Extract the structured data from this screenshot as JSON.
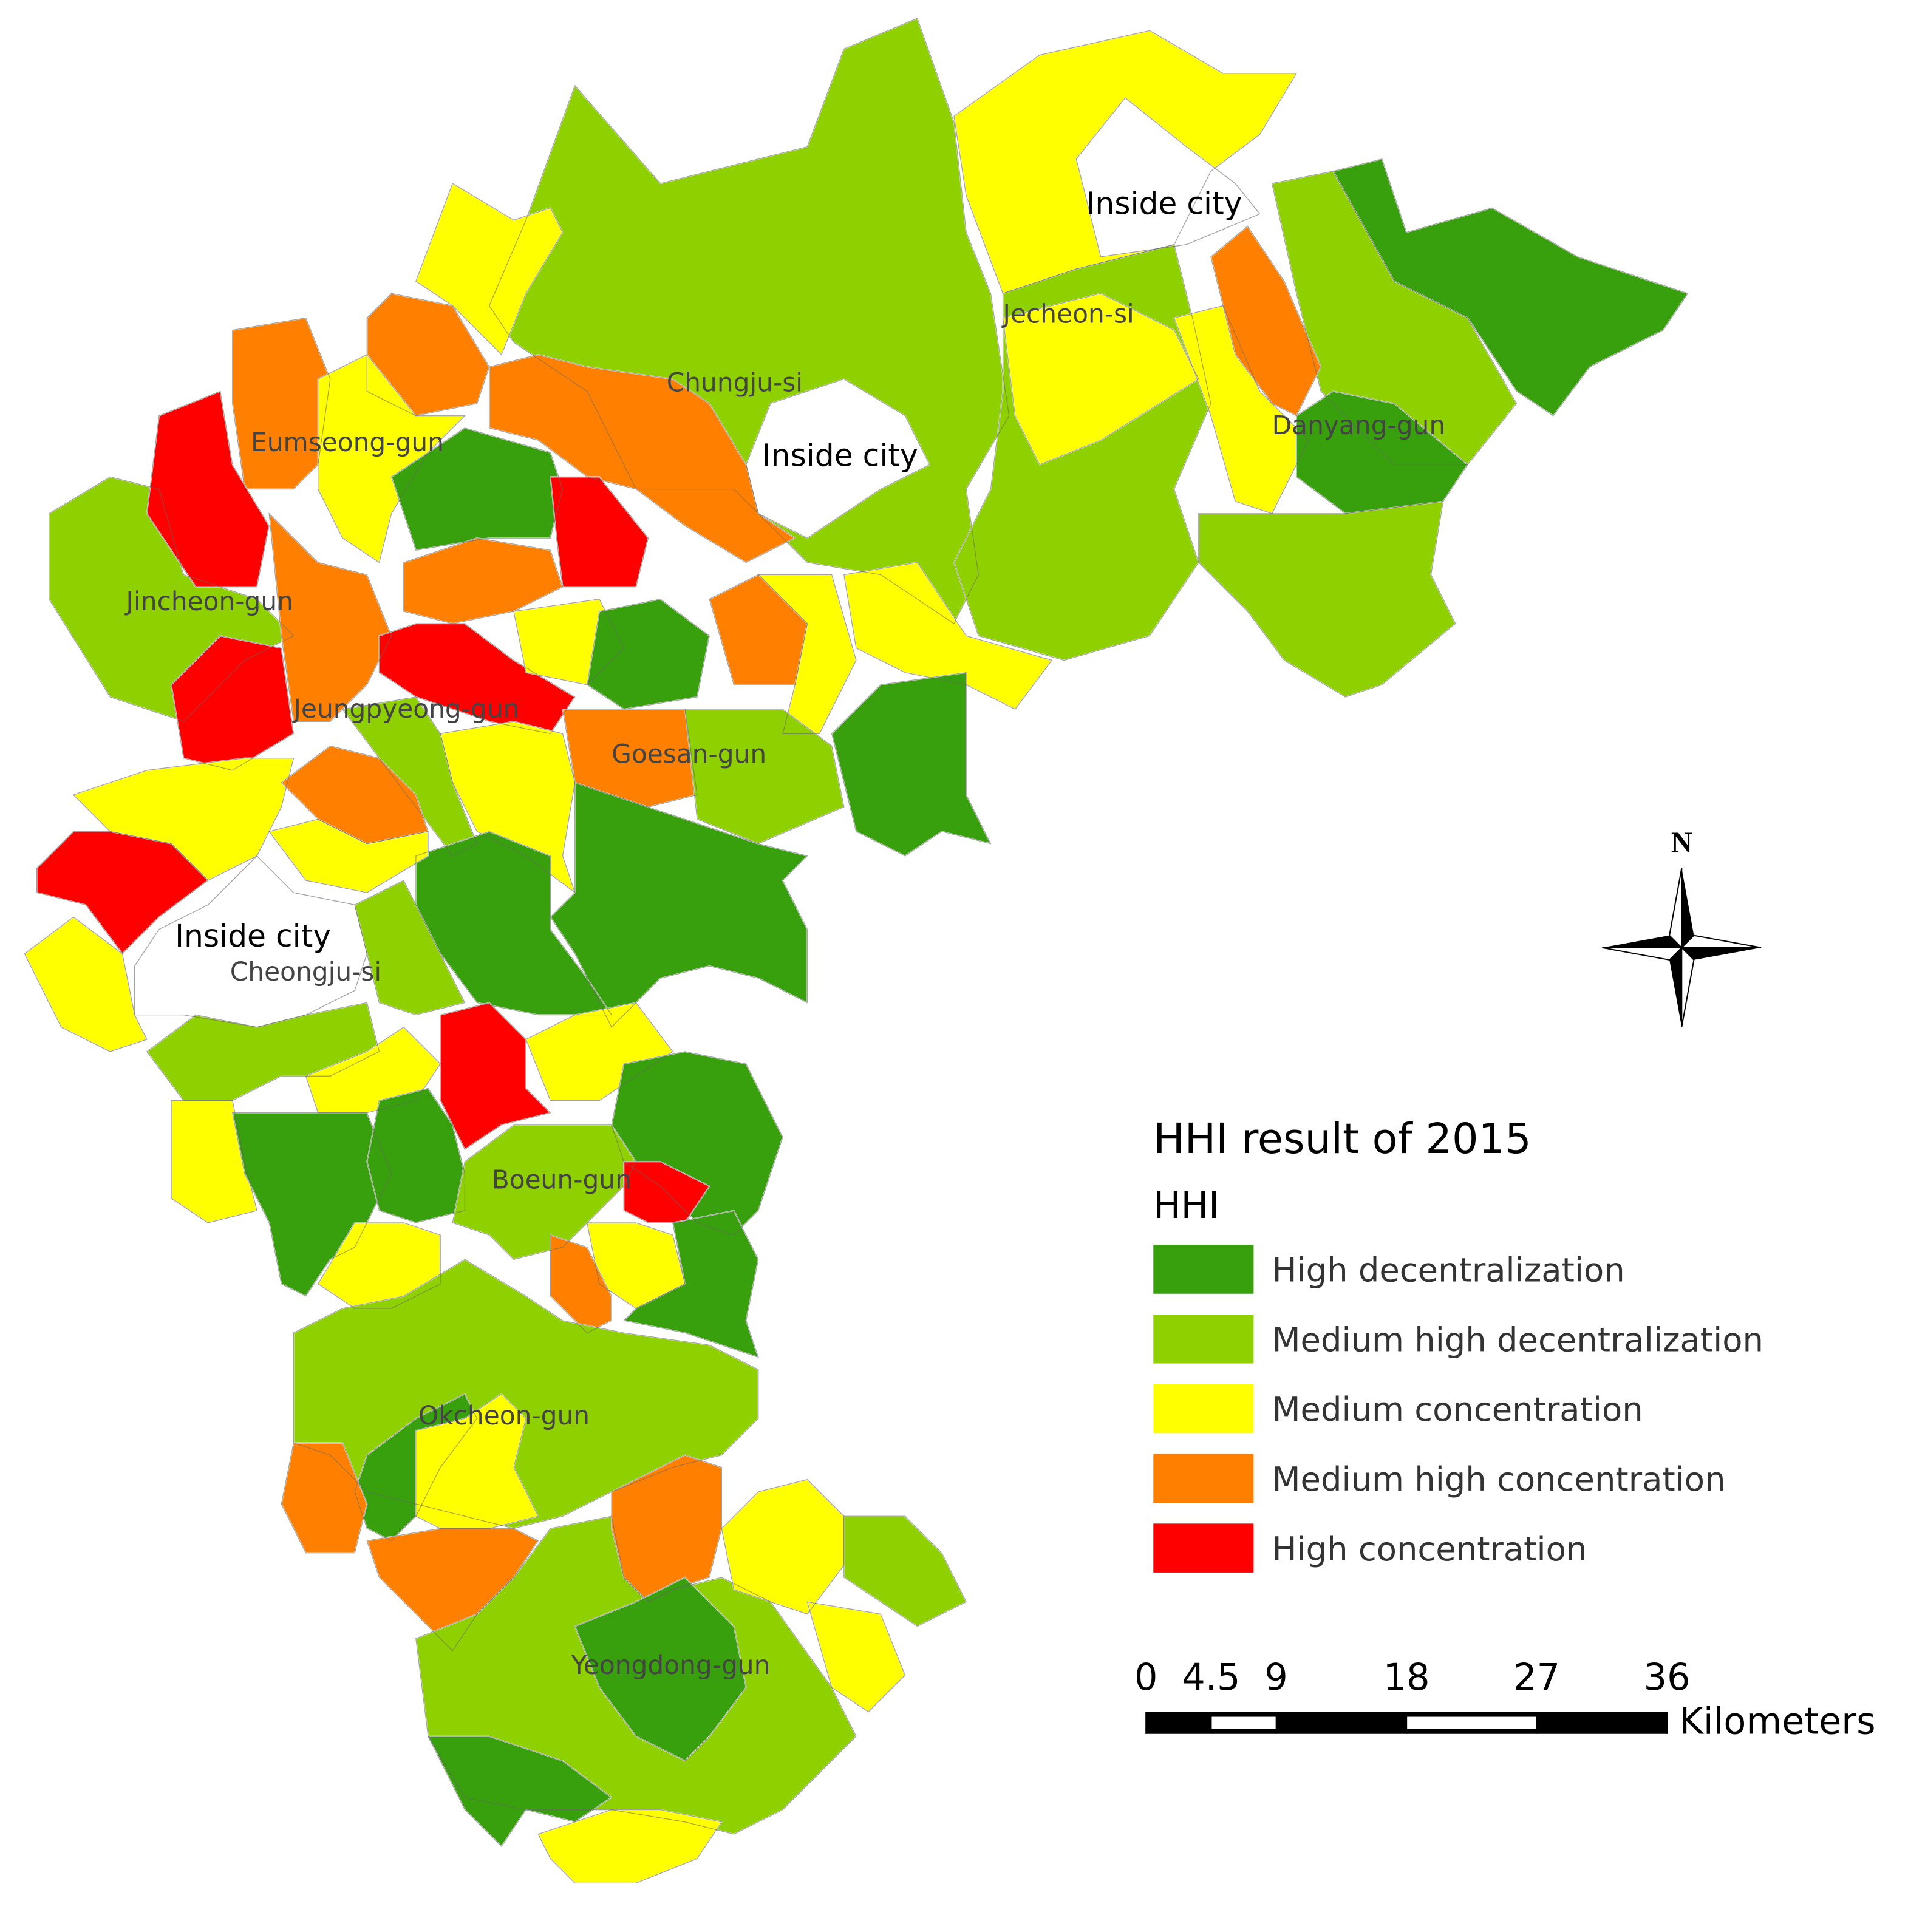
{
  "map_labels": {
    "inside_city": [
      "Inside city",
      "Inside city",
      "Inside city"
    ],
    "regions": [
      "Jecheon-si",
      "Chungju-si",
      "Danyang-gun",
      "Eumseong-gun",
      "Jincheon-gun",
      "Jeungpyeong-gun",
      "Goesan-gun",
      "Cheongju-si",
      "Boeun-gun",
      "Okcheon-gun",
      "Yeongdong-gun"
    ]
  },
  "north": "N",
  "legend": {
    "title": "HHI result of 2015",
    "subtitle": "HHI",
    "items": [
      {
        "label": "High decentralization",
        "color": "#38a00c"
      },
      {
        "label": "Medium high decentralization",
        "color": "#8fd000"
      },
      {
        "label": "Medium concentration",
        "color": "#ffff00"
      },
      {
        "label": "Medium high concentration",
        "color": "#ff8000"
      },
      {
        "label": "High concentration",
        "color": "#ff0000"
      }
    ]
  },
  "scale_bar": {
    "ticks": [
      0,
      4.5,
      9,
      18,
      27,
      36
    ],
    "unit": "Kilometers"
  }
}
